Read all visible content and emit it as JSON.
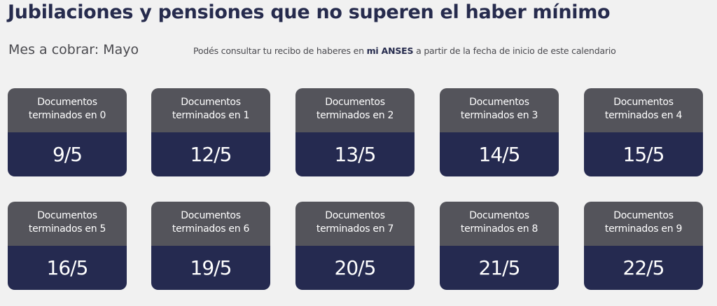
{
  "title": "Jubilaciones y pensiones que no superen el haber mínimo",
  "month_label": "Mes a cobrar: Mayo",
  "note": {
    "before": "Podés consultar tu recibo de haberes en ",
    "link": "mi ANSES",
    "after": " a partir de la fecha de inicio de este calendario"
  },
  "cards": [
    {
      "line1": "Documentos",
      "line2": "terminados en 0",
      "date": "9/5"
    },
    {
      "line1": "Documentos",
      "line2": "terminados en 1",
      "date": "12/5"
    },
    {
      "line1": "Documentos",
      "line2": "terminados en 2",
      "date": "13/5"
    },
    {
      "line1": "Documentos",
      "line2": "terminados en 3",
      "date": "14/5"
    },
    {
      "line1": "Documentos",
      "line2": "terminados en 4",
      "date": "15/5"
    },
    {
      "line1": "Documentos",
      "line2": "terminados en 5",
      "date": "16/5"
    },
    {
      "line1": "Documentos",
      "line2": "terminados en 6",
      "date": "19/5"
    },
    {
      "line1": "Documentos",
      "line2": "terminados en 7",
      "date": "20/5"
    },
    {
      "line1": "Documentos",
      "line2": "terminados en 8",
      "date": "21/5"
    },
    {
      "line1": "Documentos",
      "line2": "terminados en 9",
      "date": "22/5"
    }
  ],
  "colors": {
    "header": "#54545b",
    "date_bg": "#252a50",
    "title": "#262b4d",
    "background": "#f1f1f1"
  }
}
